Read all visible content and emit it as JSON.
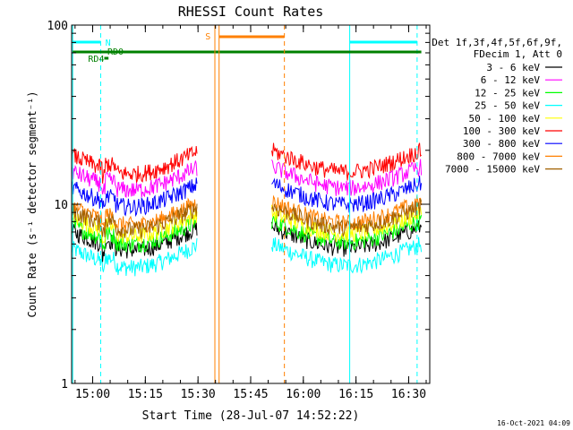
{
  "chart_data": {
    "type": "line",
    "title": "RHESSI Count Rates",
    "xlabel": "Start Time (28-Jul-07 14:52:22)",
    "ylabel": "Count Rate (s⁻¹ detector segment⁻¹)",
    "yscale": "log",
    "ylim": [
      1,
      100
    ],
    "xlim_minutes": [
      14.9,
      16.6
    ],
    "x_ticks": [
      {
        "label": "15:00",
        "min": 15.0
      },
      {
        "label": "15:15",
        "min": 15.25
      },
      {
        "label": "15:30",
        "min": 15.5
      },
      {
        "label": "15:45",
        "min": 15.75
      },
      {
        "label": "16:00",
        "min": 16.0
      },
      {
        "label": "16:15",
        "min": 16.25
      },
      {
        "label": "16:30",
        "min": 16.5
      }
    ],
    "y_ticks": [
      {
        "label": "1",
        "v": 1
      },
      {
        "label": "10",
        "v": 10
      },
      {
        "label": "100",
        "v": 100
      }
    ],
    "legend_header": [
      "Det 1f,3f,4f,5f,6f,9f,",
      "FDecim 1, Att 0"
    ],
    "legend_position": "right",
    "series": [
      {
        "name": "3 - 6 keV",
        "color": "#000000",
        "level": 6.0
      },
      {
        "name": "6 - 12 keV",
        "color": "#ff00ff",
        "level": 13.0
      },
      {
        "name": "12 - 25 keV",
        "color": "#00ff00",
        "level": 6.5
      },
      {
        "name": "25 - 50 keV",
        "color": "#00ffff",
        "level": 4.8
      },
      {
        "name": "50 - 100 keV",
        "color": "#ffff00",
        "level": 7.2
      },
      {
        "name": "100 - 300 keV",
        "color": "#ff0000",
        "level": 16.0
      },
      {
        "name": "300 - 800 keV",
        "color": "#0000ff",
        "level": 10.5
      },
      {
        "name": "800 - 7000 keV",
        "color": "#ff8000",
        "level": 8.3
      },
      {
        "name": "7000 - 15000 keV",
        "color": "#a06000",
        "level": 7.8
      }
    ],
    "annotations": [
      {
        "label": "N",
        "color": "#00ffff"
      },
      {
        "label": "RD0",
        "color": "#008000"
      },
      {
        "label": "RD4",
        "color": "#008000"
      },
      {
        "label": "S",
        "color": "#ff8000"
      }
    ],
    "footer": "16-Oct-2021 04:09"
  }
}
